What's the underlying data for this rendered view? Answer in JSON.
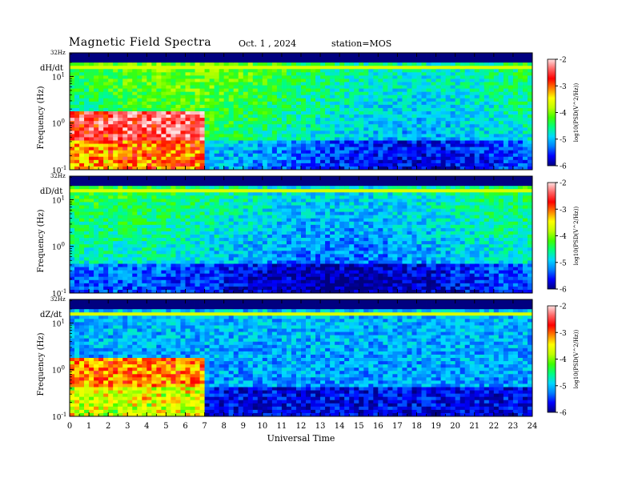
{
  "header": {
    "title": "Magnetic  Field  Spectra",
    "date": "Oct. 1  , 2024",
    "station": "station=MOS"
  },
  "chart_data": {
    "type": "heatmap",
    "x": {
      "label": "Universal Time",
      "range": [
        0,
        24
      ],
      "ticks": [
        "0",
        "1",
        "2",
        "3",
        "4",
        "5",
        "6",
        "7",
        "8",
        "9",
        "10",
        "11",
        "12",
        "13",
        "14",
        "15",
        "16",
        "17",
        "18",
        "19",
        "20",
        "21",
        "22",
        "23",
        "24"
      ]
    },
    "y": {
      "label": "Frequency  (Hz)",
      "scale": "log",
      "range_hz": [
        0.1,
        32
      ],
      "top_label": "32Hz",
      "tick_labels": [
        {
          "base": "10",
          "exp": "1",
          "value": 10
        },
        {
          "base": "10",
          "exp": "0",
          "value": 1
        },
        {
          "base": "10",
          "exp": "-1",
          "value": 0.1
        }
      ]
    },
    "colorbar": {
      "label": "log10(PSD(V^2/Hz))",
      "range": [
        -6,
        -2
      ],
      "ticks": [
        "-2",
        "-3",
        "-4",
        "-5",
        "-6"
      ],
      "colors": [
        "#000080",
        "#0000ff",
        "#0080ff",
        "#00d8ff",
        "#00ff80",
        "#40ff00",
        "#c0ff00",
        "#ffff00",
        "#ff8000",
        "#ff0000",
        "#ff6666",
        "#ffe0e0"
      ]
    },
    "panels": [
      {
        "name": "dH/dt"
      },
      {
        "name": "dD/dt"
      },
      {
        "name": "dZ/dt"
      }
    ]
  }
}
